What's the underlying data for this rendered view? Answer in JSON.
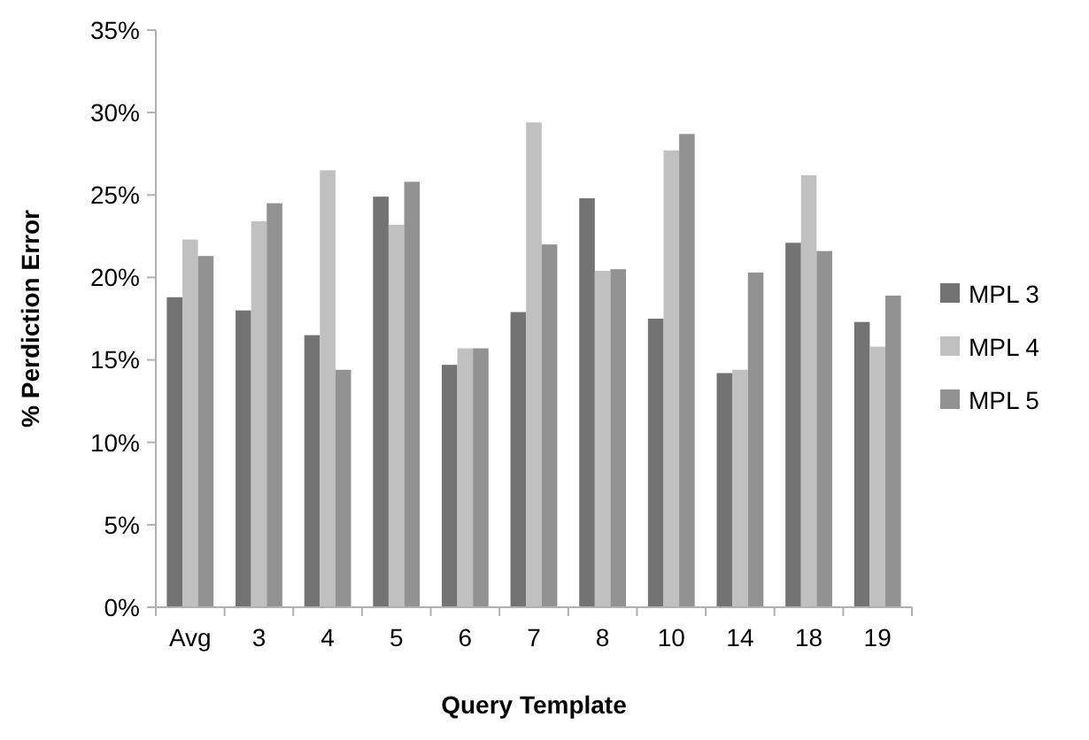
{
  "chart_data": {
    "type": "bar",
    "xlabel": "Query Template",
    "ylabel": "% Perdiction Error",
    "categories": [
      "Avg",
      "3",
      "4",
      "5",
      "6",
      "7",
      "8",
      "10",
      "14",
      "18",
      "19"
    ],
    "series": [
      {
        "name": "MPL 3",
        "color": "#737373",
        "values": [
          18.8,
          18.0,
          16.5,
          24.9,
          14.7,
          17.9,
          24.8,
          17.5,
          14.2,
          22.1,
          17.3
        ]
      },
      {
        "name": "MPL 4",
        "color": "#c0c0c0",
        "values": [
          22.3,
          23.4,
          26.5,
          23.2,
          15.7,
          29.4,
          20.4,
          27.7,
          14.4,
          26.2,
          15.8
        ]
      },
      {
        "name": "MPL 5",
        "color": "#929292",
        "values": [
          21.3,
          24.5,
          14.4,
          25.8,
          15.7,
          22.0,
          20.5,
          28.7,
          20.3,
          21.6,
          18.9
        ]
      }
    ],
    "ylim": [
      0,
      35
    ],
    "yticks": [
      {
        "value": 0,
        "label": "0%"
      },
      {
        "value": 5,
        "label": "5%"
      },
      {
        "value": 10,
        "label": "10%"
      },
      {
        "value": 15,
        "label": "15%"
      },
      {
        "value": 20,
        "label": "20%"
      },
      {
        "value": 25,
        "label": "25%"
      },
      {
        "value": 30,
        "label": "30%"
      },
      {
        "value": 35,
        "label": "35%"
      }
    ],
    "grid": false,
    "legend": "right"
  }
}
